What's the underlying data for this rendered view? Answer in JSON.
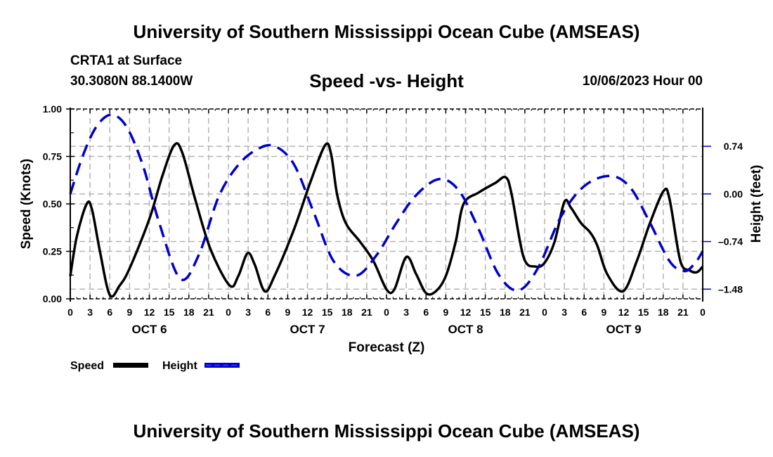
{
  "header": {
    "main_title": "University of Southern Mississippi Ocean Cube (AMSEAS)",
    "station": "CRTA1 at Surface",
    "coordinates": "30.3080N  88.1400W",
    "subtitle": "Speed -vs- Height",
    "datetime": "10/06/2023 Hour 00"
  },
  "footer": {
    "bottom_title": "University of Southern Mississippi Ocean Cube (AMSEAS)"
  },
  "chart_data": {
    "type": "line",
    "title": "Speed -vs- Height",
    "xlabel": "Forecast (Z)",
    "ylabel": "Speed (Knots)",
    "y2label": "Height (feet)",
    "xlim": [
      0,
      96
    ],
    "ylim": [
      0,
      1.0
    ],
    "y2lim": [
      -1.63,
      1.32
    ],
    "grid": true,
    "legend_placement": "bottom-left",
    "x_tick_labels": [
      "0",
      "3",
      "6",
      "9",
      "12",
      "15",
      "18",
      "21",
      "0",
      "3",
      "6",
      "9",
      "12",
      "15",
      "18",
      "21",
      "0",
      "3",
      "6",
      "9",
      "12",
      "15",
      "18",
      "21",
      "0",
      "3",
      "6",
      "9",
      "12",
      "15",
      "18",
      "21",
      "0"
    ],
    "day_labels": [
      {
        "label": "OCT 6",
        "center_hour": 12
      },
      {
        "label": "OCT 7",
        "center_hour": 36
      },
      {
        "label": "OCT 8",
        "center_hour": 60
      },
      {
        "label": "OCT 9",
        "center_hour": 84
      }
    ],
    "y_ticks": [
      "0.00",
      "0.25",
      "0.50",
      "0.75",
      "1.00"
    ],
    "y2_ticks": [
      "-1.48",
      "-0.74",
      "0.00",
      "0.74"
    ],
    "y2_tick_values": [
      -1.48,
      -0.74,
      0.0,
      0.74
    ],
    "series": [
      {
        "name": "Speed",
        "axis": "left",
        "color": "#000000",
        "style": "solid",
        "x": [
          0,
          1,
          2.5,
          3.3,
          4.5,
          6,
          7.5,
          9,
          12,
          14,
          15.8,
          17,
          19,
          21.3,
          24.2,
          25.5,
          26.9,
          28,
          29.5,
          31,
          34,
          36.5,
          38.7,
          39.6,
          40.5,
          41.8,
          44,
          46,
          48,
          49.2,
          51,
          52.5,
          54,
          55.5,
          57,
          58.5,
          59.7,
          62,
          64.5,
          66.1,
          67,
          68.8,
          70.6,
          72,
          73.5,
          75,
          76,
          77.5,
          78.9,
          80,
          81.5,
          83.9,
          86,
          88,
          90.1,
          91,
          92.6,
          94,
          95.1,
          96
        ],
        "values": [
          0.12,
          0.33,
          0.5,
          0.47,
          0.25,
          0.02,
          0.07,
          0.16,
          0.42,
          0.65,
          0.81,
          0.77,
          0.52,
          0.26,
          0.07,
          0.12,
          0.24,
          0.18,
          0.04,
          0.12,
          0.37,
          0.62,
          0.81,
          0.76,
          0.55,
          0.4,
          0.3,
          0.2,
          0.05,
          0.05,
          0.22,
          0.13,
          0.03,
          0.04,
          0.12,
          0.3,
          0.5,
          0.56,
          0.61,
          0.64,
          0.55,
          0.22,
          0.17,
          0.19,
          0.3,
          0.51,
          0.48,
          0.4,
          0.35,
          0.28,
          0.13,
          0.04,
          0.2,
          0.4,
          0.57,
          0.52,
          0.2,
          0.15,
          0.14,
          0.17
        ]
      },
      {
        "name": "Height",
        "axis": "right",
        "color": "#0000cc",
        "style": "dashed",
        "x": [
          0,
          2,
          4,
          6.2,
          8.5,
          11,
          13.5,
          16.7,
          19.5,
          22.5,
          25.5,
          28.5,
          31.1,
          34,
          37,
          40,
          43.4,
          46.5,
          49.5,
          52.5,
          56,
          59,
          62,
          65,
          68,
          71,
          74.5,
          78,
          81.9,
          85,
          88,
          91,
          93.3,
          95,
          96
        ],
        "values": [
          0.0,
          0.62,
          1.05,
          1.23,
          1.05,
          0.45,
          -0.45,
          -1.32,
          -0.95,
          -0.05,
          0.45,
          0.7,
          0.74,
          0.45,
          -0.3,
          -1.05,
          -1.27,
          -0.95,
          -0.45,
          -0.02,
          0.23,
          0.05,
          -0.55,
          -1.25,
          -1.5,
          -1.15,
          -0.35,
          0.12,
          0.28,
          0.1,
          -0.45,
          -1.05,
          -1.2,
          -1.05,
          -0.89
        ]
      }
    ]
  },
  "legend": {
    "items": [
      {
        "label": "Speed",
        "color": "#000000"
      },
      {
        "label": "Height",
        "color": "#0000cc"
      }
    ]
  }
}
